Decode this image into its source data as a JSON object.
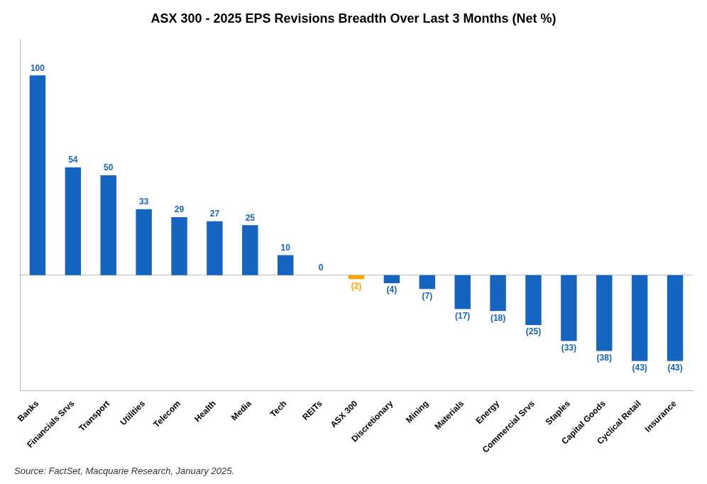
{
  "chart_data": {
    "type": "bar",
    "title": "ASX 300 - 2025 EPS Revisions Breadth Over Last 3 Months (Net %)",
    "categories": [
      "Banks",
      "Financials Srvs",
      "Transport",
      "Utilities",
      "Telecom",
      "Health",
      "Media",
      "Tech",
      "REITs",
      "ASX 300",
      "Discretionary",
      "Mining",
      "Materials",
      "Energy",
      "Commercial Srvs",
      "Staples",
      "Capital Goods",
      "Cyclical Retail",
      "Insurance"
    ],
    "values": [
      100,
      54,
      50,
      33,
      29,
      27,
      25,
      10,
      0,
      -2,
      -4,
      -7,
      -17,
      -18,
      -25,
      -33,
      -38,
      -43,
      -43
    ],
    "value_labels": [
      "100",
      "54",
      "50",
      "33",
      "29",
      "27",
      "25",
      "10",
      "0",
      "(2)",
      "(4)",
      "(7)",
      "(17)",
      "(18)",
      "(25)",
      "(33)",
      "(38)",
      "(43)",
      "(43)"
    ],
    "colors": [
      "#1565C0",
      "#1565C0",
      "#1565C0",
      "#1565C0",
      "#1565C0",
      "#1565C0",
      "#1565C0",
      "#1565C0",
      "#1565C0",
      "#FFA500",
      "#1565C0",
      "#1565C0",
      "#1565C0",
      "#1565C0",
      "#1565C0",
      "#1565C0",
      "#1565C0",
      "#1565C0",
      "#1565C0"
    ],
    "ylim": [
      -58,
      118
    ],
    "data_labels": true,
    "tick_labels": "x",
    "grid": false,
    "annotations": [
      "Source: FactSet, Macquarie Research, January 2025."
    ]
  }
}
